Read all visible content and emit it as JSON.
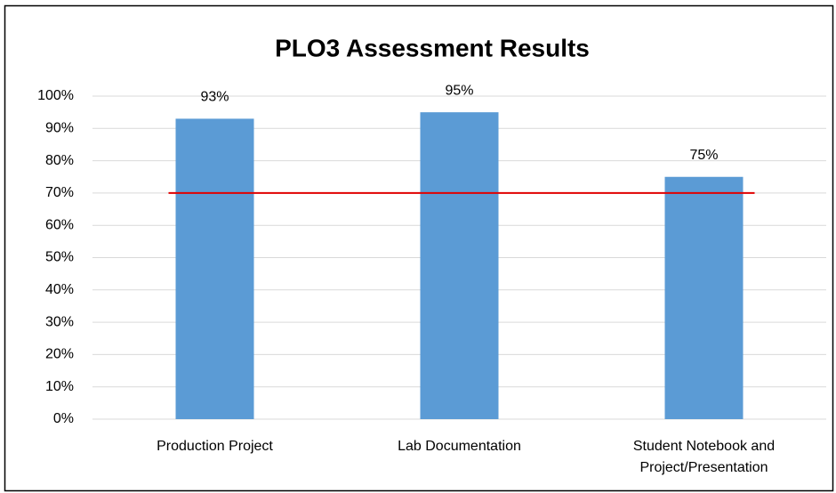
{
  "chart_data": {
    "type": "bar",
    "title": "PLO3 Assessment Results",
    "categories": [
      "Production Project",
      "Lab Documentation",
      "Student Notebook and\nProject/Presentation"
    ],
    "values": [
      93,
      95,
      75
    ],
    "value_labels": [
      "93%",
      "95%",
      "75%"
    ],
    "color": "#5b9bd5",
    "ylim": [
      0,
      100
    ],
    "yticks": [
      {
        "value": 0,
        "label": "0%"
      },
      {
        "value": 10,
        "label": "10%"
      },
      {
        "value": 20,
        "label": "20%"
      },
      {
        "value": 30,
        "label": "30%"
      },
      {
        "value": 40,
        "label": "40%"
      },
      {
        "value": 50,
        "label": "50%"
      },
      {
        "value": 60,
        "label": "60%"
      },
      {
        "value": 70,
        "label": "70%"
      },
      {
        "value": 80,
        "label": "80%"
      },
      {
        "value": 90,
        "label": "90%"
      },
      {
        "value": 100,
        "label": "100%"
      }
    ],
    "grid": true,
    "target": 70,
    "target_color": "#e00000"
  }
}
